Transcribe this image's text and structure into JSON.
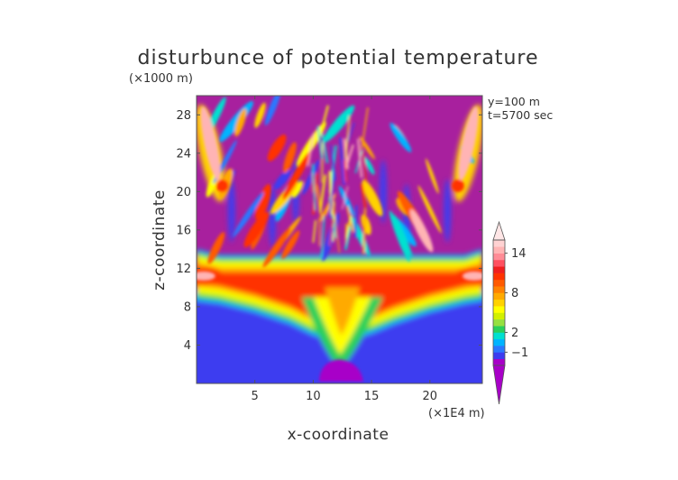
{
  "chart_data": {
    "type": "heatmap",
    "title": "disturbunce of potential temperature",
    "xlabel": "x-coordinate",
    "ylabel": "z-coordinate",
    "x_unit": "(×1E4 m)",
    "z_unit": "(×1000 m)",
    "info": [
      "y=100 m",
      "t=5700 sec"
    ],
    "xlim": [
      0,
      24.5
    ],
    "ylim": [
      0,
      30
    ],
    "x_ticks": [
      5,
      10,
      15,
      20
    ],
    "y_ticks": [
      4,
      8,
      12,
      16,
      20,
      24,
      28
    ],
    "colorbar": {
      "levels": [
        -3,
        -2,
        -1,
        0,
        1,
        2,
        3,
        4,
        5,
        6,
        7,
        8,
        9,
        10,
        11,
        12,
        13,
        14,
        15,
        16
      ],
      "colors": [
        "#a800c8",
        "#3c3cf0",
        "#2a78ff",
        "#00b4ff",
        "#00e0d0",
        "#2ad05a",
        "#96e040",
        "#d2f000",
        "#ffff00",
        "#ffd200",
        "#ffaa00",
        "#ff8200",
        "#ff5a00",
        "#ff3200",
        "#f01e1e",
        "#ff5060",
        "#ff8c96",
        "#ffb4b4",
        "#ffd2d2"
      ],
      "under_color": "#a800c8",
      "over_color": "#ffe6e6",
      "tick_labels": [
        {
          "value": -1,
          "label": "−1"
        },
        {
          "value": 2,
          "label": "2"
        },
        {
          "value": 8,
          "label": "8"
        },
        {
          "value": 14,
          "label": "14"
        }
      ]
    },
    "background_color": "#a8209e"
  }
}
